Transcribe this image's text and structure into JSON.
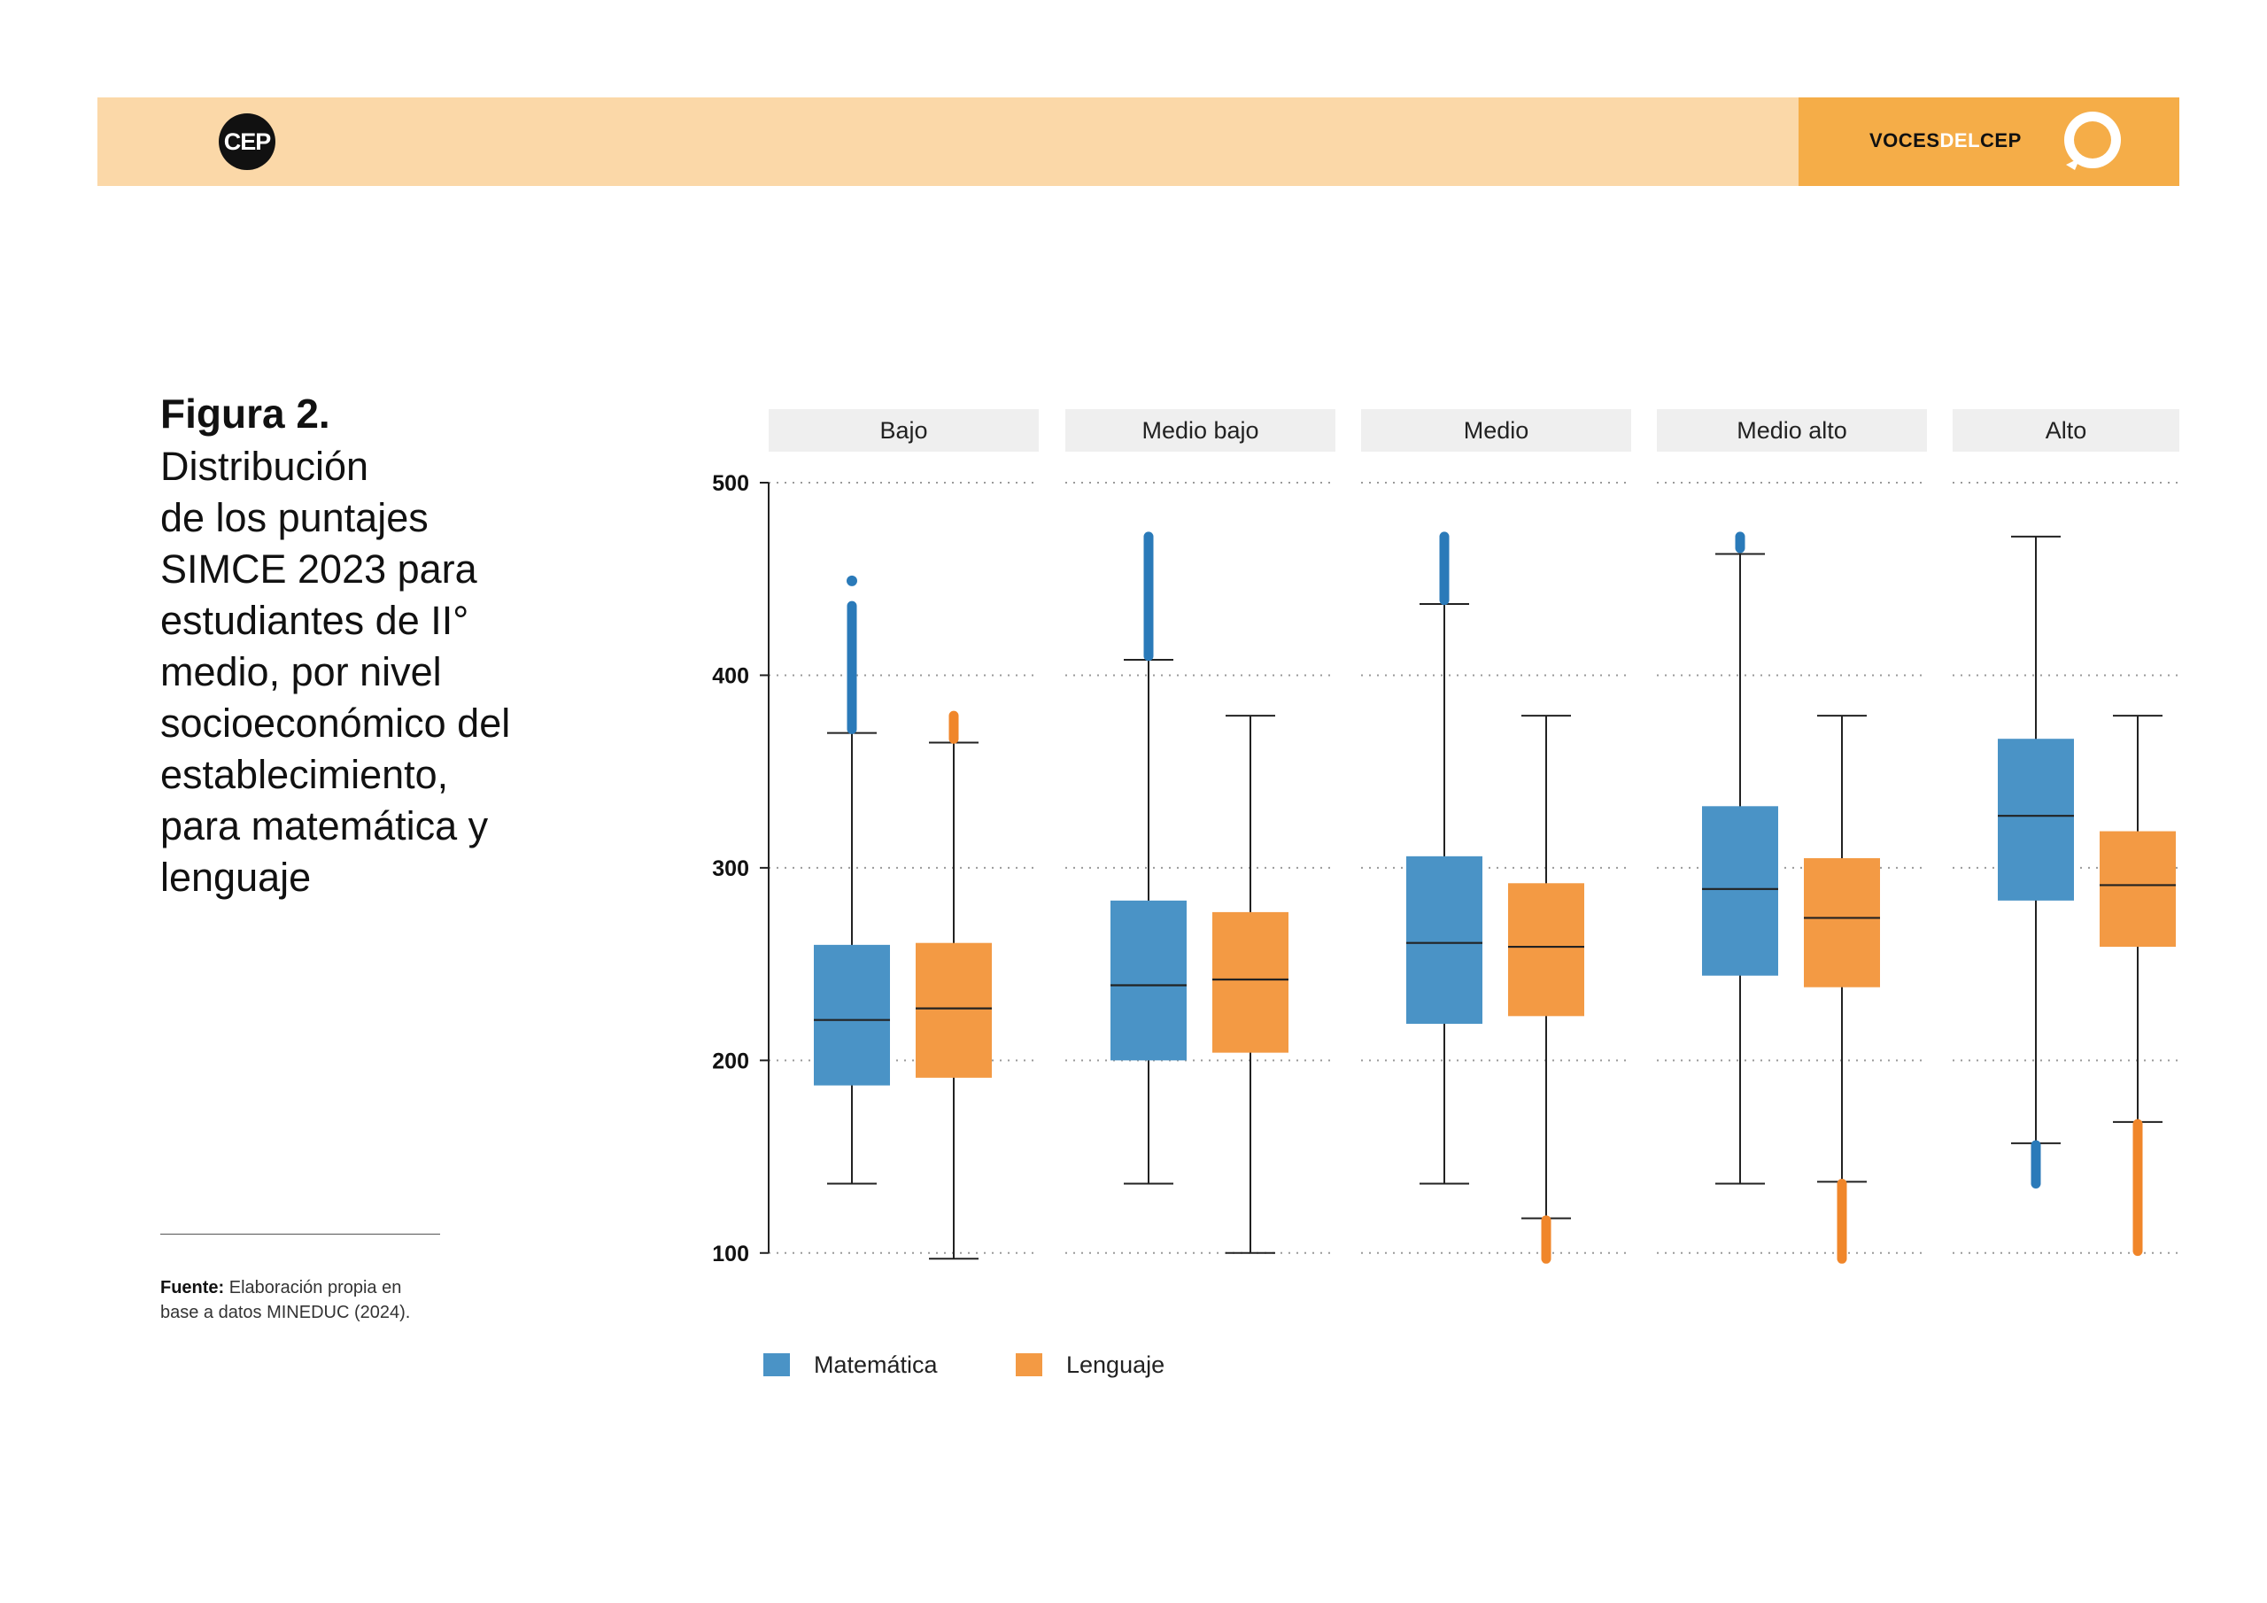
{
  "header": {
    "logo_text": "CEP",
    "brand": {
      "part1": "VOCES",
      "part2": "DEL",
      "part3": "CEP"
    },
    "colors": {
      "band": "#fbd8a8",
      "brand_box": "#f5ad48",
      "logo_bg": "#111111"
    }
  },
  "figure": {
    "label": "Figura 2.",
    "title": "Distribución\nde los puntajes\nSIMCE 2023 para\nestudiantes de II°\nmedio, por nivel\nsocioeconómico del\nestablecimiento,\npara matemática y\nlenguaje",
    "source_label": "Fuente:",
    "source_text": " Elaboración propia en base a datos MINEDUC (2024)."
  },
  "chart_data": {
    "type": "boxplot",
    "title": "",
    "xlabel": "",
    "ylabel": "",
    "ylim": [
      93,
      500
    ],
    "yticks": [
      100,
      200,
      300,
      400,
      500
    ],
    "grid": true,
    "legend_position": "bottom-left",
    "panels": [
      "Bajo",
      "Medio bajo",
      "Medio",
      "Medio alto",
      "Alto"
    ],
    "series": [
      {
        "name": "Matemática",
        "color": "#4a93c6",
        "outlier_color": "#2a7ab9",
        "boxes": [
          {
            "panel": "Bajo",
            "whisker_low": 136,
            "q1": 187,
            "median": 221,
            "q3": 260,
            "whisker_high": 370,
            "outliers_low": null,
            "outliers_high": [
              372,
              436
            ],
            "outlier_max": 449
          },
          {
            "panel": "Medio bajo",
            "whisker_low": 136,
            "q1": 200,
            "median": 239,
            "q3": 283,
            "whisker_high": 408,
            "outliers_low": null,
            "outliers_high": [
              410,
              472
            ],
            "outlier_max": 472
          },
          {
            "panel": "Medio",
            "whisker_low": 136,
            "q1": 219,
            "median": 261,
            "q3": 306,
            "whisker_high": 437,
            "outliers_low": null,
            "outliers_high": [
              439,
              472
            ],
            "outlier_max": 472
          },
          {
            "panel": "Medio alto",
            "whisker_low": 136,
            "q1": 244,
            "median": 289,
            "q3": 332,
            "whisker_high": 463,
            "outliers_low": null,
            "outliers_high": [
              466,
              472
            ],
            "outlier_max": 472
          },
          {
            "panel": "Alto",
            "whisker_low": 157,
            "q1": 283,
            "median": 327,
            "q3": 367,
            "whisker_high": 472,
            "outliers_low": [
              136,
              156
            ],
            "outliers_high": null,
            "outlier_max": null
          }
        ]
      },
      {
        "name": "Lenguaje",
        "color": "#f39a44",
        "outlier_color": "#f0862a",
        "boxes": [
          {
            "panel": "Bajo",
            "whisker_low": 97,
            "q1": 191,
            "median": 227,
            "q3": 261,
            "whisker_high": 365,
            "outliers_low": null,
            "outliers_high": [
              367,
              379
            ],
            "outlier_max": 379
          },
          {
            "panel": "Medio bajo",
            "whisker_low": 100,
            "q1": 204,
            "median": 242,
            "q3": 277,
            "whisker_high": 379,
            "outliers_low": null,
            "outliers_high": null,
            "outlier_max": null
          },
          {
            "panel": "Medio",
            "whisker_low": 118,
            "q1": 223,
            "median": 259,
            "q3": 292,
            "whisker_high": 379,
            "outliers_low": [
              97,
              117
            ],
            "outliers_high": null,
            "outlier_max": null
          },
          {
            "panel": "Medio alto",
            "whisker_low": 137,
            "q1": 238,
            "median": 274,
            "q3": 305,
            "whisker_high": 379,
            "outliers_low": [
              97,
              136
            ],
            "outliers_high": null,
            "outlier_max": null
          },
          {
            "panel": "Alto",
            "whisker_low": 168,
            "q1": 259,
            "median": 291,
            "q3": 319,
            "whisker_high": 379,
            "outliers_low": [
              101,
              167
            ],
            "outliers_high": null,
            "outlier_max": null
          }
        ]
      }
    ]
  }
}
